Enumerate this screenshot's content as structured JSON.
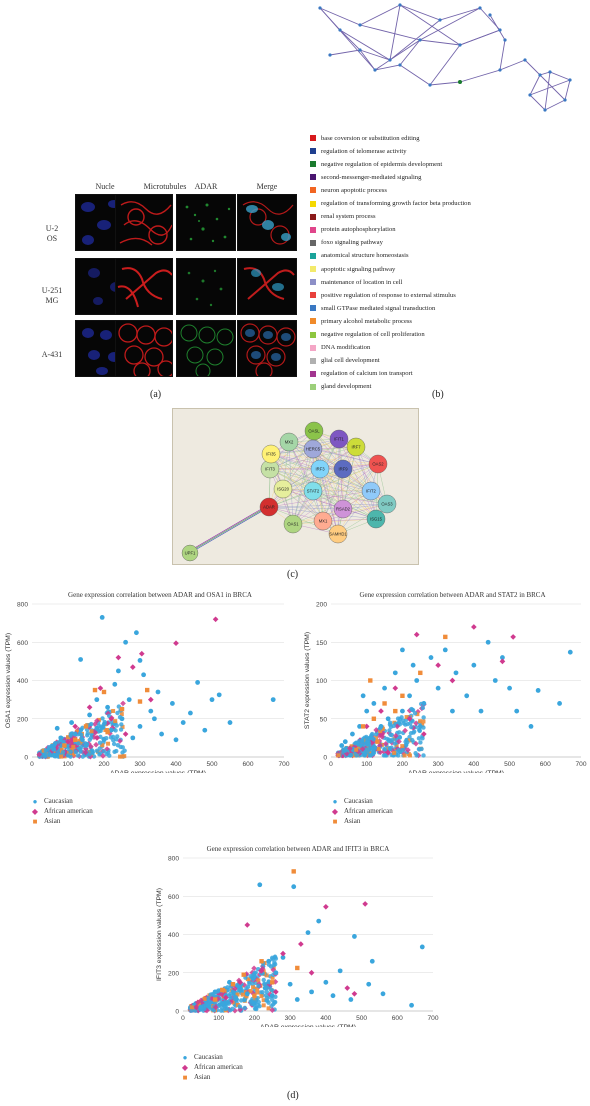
{
  "panels": {
    "a": "(a)",
    "b": "(b)",
    "c": "(c)",
    "d": "(d)"
  },
  "microscopy": {
    "channels": [
      "Nucle",
      "Microtubules",
      "ADAR",
      "Merge"
    ],
    "cell_lines": [
      {
        "line1": "U-2",
        "line2": "OS"
      },
      {
        "line1": "U-251",
        "line2": "MG"
      },
      {
        "line1": "A-431",
        "line2": ""
      }
    ]
  },
  "enrichment_legend": [
    {
      "label": "base coversion or substitution editing",
      "color": "#d7191c"
    },
    {
      "label": "regulation of telomerase activity",
      "color": "#1f3f8f"
    },
    {
      "label": "negative regulation of epidermis development",
      "color": "#1a7a2e"
    },
    {
      "label": "second-messenger-mediated signaling",
      "color": "#4a1570"
    },
    {
      "label": "neuron apoptotic process",
      "color": "#f26522"
    },
    {
      "label": "regulation of transforming growth factor beta production",
      "color": "#f5d800"
    },
    {
      "label": "renal system process",
      "color": "#8b1a1a"
    },
    {
      "label": "protein autophosphorylation",
      "color": "#e0458b"
    },
    {
      "label": "foxo signaling pathway",
      "color": "#666666"
    },
    {
      "label": "anatomical structure homeostasis",
      "color": "#1aa39a"
    },
    {
      "label": "apoptotic signaling pathway",
      "color": "#f3ea6b"
    },
    {
      "label": "maintenance of location in cell",
      "color": "#8c8fc7"
    },
    {
      "label": "positive regulation of response to external stimulus",
      "color": "#e8413c"
    },
    {
      "label": "small GTPase mediated signal transduction",
      "color": "#3a78c2"
    },
    {
      "label": "primary alcohol metabolic process",
      "color": "#f08a2a"
    },
    {
      "label": "negative regulation of cell proliferation",
      "color": "#8dc63f"
    },
    {
      "label": "DNA modification",
      "color": "#f4a6c6"
    },
    {
      "label": "glial cell development",
      "color": "#b0b0b0"
    },
    {
      "label": "regulation of calcium ion transport",
      "color": "#a2358f"
    },
    {
      "label": "gland development",
      "color": "#9ccf7a"
    }
  ],
  "ppi": {
    "nodes": [
      "OASL",
      "IFIT1",
      "IRF7",
      "OAS2",
      "MX2",
      "HERC5",
      "ISG15",
      "IFIT3",
      "IRF9",
      "IFIT2",
      "OAS3",
      "IFI35",
      "IRF3",
      "ISG20",
      "ADAR",
      "STAT2",
      "OAS1",
      "MX1",
      "RSAD2",
      "SAMHD1",
      "UPF1"
    ]
  },
  "colors": {
    "caucasian": "#3aa6dd",
    "african_american": "#d03a8f",
    "asian": "#f08c3a",
    "grid": "#d9d9d9"
  },
  "chart_data": [
    {
      "type": "scatter",
      "title": "Gene expression correlation between ADAR and OSA1 in BRCA",
      "xlabel": "ADAR expression values (TPM)",
      "ylabel": "OSA1 expression values (TPM)",
      "xlim": [
        0,
        700
      ],
      "ylim": [
        0,
        800
      ],
      "xticks": [
        0,
        100,
        200,
        300,
        400,
        500,
        600,
        700
      ],
      "yticks": [
        0,
        200,
        400,
        600,
        800
      ],
      "grid": "horizontal",
      "legend_position": "bottom-left",
      "series": [
        {
          "name": "Caucasian",
          "marker": "circle",
          "points": [
            [
              195,
              730
            ],
            [
              290,
              650
            ],
            [
              260,
              600
            ],
            [
              135,
              510
            ],
            [
              300,
              505
            ],
            [
              310,
              430
            ],
            [
              520,
              325
            ],
            [
              670,
              300
            ],
            [
              550,
              180
            ],
            [
              460,
              390
            ],
            [
              180,
              300
            ],
            [
              230,
              380
            ],
            [
              350,
              340
            ],
            [
              240,
              450
            ],
            [
              120,
              120
            ],
            [
              160,
              220
            ],
            [
              210,
              260
            ],
            [
              270,
              300
            ],
            [
              330,
              240
            ],
            [
              390,
              280
            ],
            [
              420,
              180
            ],
            [
              480,
              140
            ],
            [
              90,
              60
            ],
            [
              60,
              40
            ],
            [
              140,
              90
            ],
            [
              180,
              150
            ],
            [
              250,
              200
            ],
            [
              300,
              160
            ],
            [
              360,
              120
            ],
            [
              200,
              90
            ],
            [
              110,
              180
            ],
            [
              80,
              100
            ],
            [
              150,
              60
            ],
            [
              220,
              140
            ],
            [
              280,
              100
            ],
            [
              340,
              200
            ],
            [
              400,
              90
            ],
            [
              440,
              230
            ],
            [
              500,
              300
            ],
            [
              70,
              150
            ]
          ]
        },
        {
          "name": "African american",
          "marker": "diamond",
          "points": [
            [
              510,
              720
            ],
            [
              400,
              595
            ],
            [
              305,
              540
            ],
            [
              240,
              520
            ],
            [
              280,
              470
            ],
            [
              190,
              360
            ],
            [
              160,
              260
            ],
            [
              220,
              200
            ],
            [
              120,
              160
            ],
            [
              330,
              300
            ],
            [
              260,
              120
            ],
            [
              100,
              80
            ]
          ]
        },
        {
          "name": "Asian",
          "marker": "square",
          "points": [
            [
              175,
              350
            ],
            [
              200,
              340
            ],
            [
              300,
              290
            ],
            [
              250,
              250
            ],
            [
              150,
              160
            ],
            [
              120,
              90
            ],
            [
              90,
              60
            ],
            [
              210,
              130
            ],
            [
              320,
              350
            ]
          ]
        }
      ]
    },
    {
      "type": "scatter",
      "title": "Gene expression correlation between ADAR and STAT2 in BRCA",
      "xlabel": "ADAR expression values (TPM)",
      "ylabel": "STAT2 expression values (TPM)",
      "xlim": [
        0,
        700
      ],
      "ylim": [
        0,
        200
      ],
      "xticks": [
        0,
        100,
        200,
        300,
        400,
        500,
        600,
        700
      ],
      "yticks": [
        0,
        50,
        100,
        150,
        200
      ],
      "grid": "horizontal",
      "legend_position": "bottom-left",
      "series": [
        {
          "name": "Caucasian",
          "marker": "circle",
          "points": [
            [
              670,
              137
            ],
            [
              640,
              70
            ],
            [
              580,
              87
            ],
            [
              520,
              60
            ],
            [
              480,
              130
            ],
            [
              460,
              100
            ],
            [
              440,
              150
            ],
            [
              400,
              120
            ],
            [
              380,
              80
            ],
            [
              350,
              110
            ],
            [
              320,
              140
            ],
            [
              300,
              90
            ],
            [
              280,
              130
            ],
            [
              260,
              70
            ],
            [
              240,
              100
            ],
            [
              220,
              80
            ],
            [
              200,
              60
            ],
            [
              180,
              110
            ],
            [
              160,
              50
            ],
            [
              140,
              40
            ],
            [
              120,
              70
            ],
            [
              100,
              60
            ],
            [
              80,
              40
            ],
            [
              60,
              30
            ],
            [
              40,
              20
            ],
            [
              30,
              15
            ],
            [
              250,
              40
            ],
            [
              340,
              60
            ],
            [
              420,
              60
            ],
            [
              500,
              90
            ],
            [
              560,
              40
            ],
            [
              150,
              90
            ],
            [
              110,
              25
            ],
            [
              90,
              80
            ],
            [
              200,
              140
            ],
            [
              230,
              120
            ]
          ]
        },
        {
          "name": "African american",
          "marker": "diamond",
          "points": [
            [
              400,
              170
            ],
            [
              510,
              157
            ],
            [
              240,
              160
            ],
            [
              480,
              125
            ],
            [
              300,
              120
            ],
            [
              180,
              90
            ],
            [
              140,
              60
            ],
            [
              220,
              50
            ],
            [
              100,
              40
            ],
            [
              340,
              100
            ],
            [
              260,
              30
            ]
          ]
        },
        {
          "name": "Asian",
          "marker": "square",
          "points": [
            [
              320,
              157
            ],
            [
              110,
              100
            ],
            [
              250,
              110
            ],
            [
              200,
              80
            ],
            [
              150,
              70
            ],
            [
              120,
              50
            ],
            [
              90,
              40
            ],
            [
              180,
              60
            ],
            [
              130,
              20
            ]
          ]
        }
      ]
    },
    {
      "type": "scatter",
      "title": "Gene expression correlation between ADAR and IFIT3 in BRCA",
      "xlabel": "ADAR expression values (TPM)",
      "ylabel": "IFIT3 expression values (TPM)",
      "xlim": [
        0,
        700
      ],
      "ylim": [
        0,
        800
      ],
      "xticks": [
        0,
        100,
        200,
        300,
        400,
        500,
        600,
        700
      ],
      "yticks": [
        0,
        200,
        400,
        600,
        800
      ],
      "grid": "horizontal",
      "legend_position": "bottom-left",
      "series": [
        {
          "name": "Caucasian",
          "marker": "circle",
          "points": [
            [
              215,
              660
            ],
            [
              310,
              650
            ],
            [
              380,
              470
            ],
            [
              350,
              410
            ],
            [
              480,
              390
            ],
            [
              670,
              335
            ],
            [
              530,
              260
            ],
            [
              440,
              210
            ],
            [
              400,
              150
            ],
            [
              300,
              140
            ],
            [
              260,
              200
            ],
            [
              230,
              120
            ],
            [
              200,
              180
            ],
            [
              180,
              90
            ],
            [
              150,
              60
            ],
            [
              130,
              150
            ],
            [
              110,
              40
            ],
            [
              90,
              100
            ],
            [
              70,
              30
            ],
            [
              50,
              20
            ],
            [
              250,
              80
            ],
            [
              320,
              60
            ],
            [
              360,
              100
            ],
            [
              420,
              80
            ],
            [
              470,
              60
            ],
            [
              520,
              140
            ],
            [
              560,
              90
            ],
            [
              640,
              30
            ],
            [
              200,
              40
            ],
            [
              160,
              120
            ],
            [
              120,
              80
            ],
            [
              280,
              280
            ],
            [
              240,
              260
            ]
          ]
        },
        {
          "name": "African american",
          "marker": "diamond",
          "points": [
            [
              510,
              560
            ],
            [
              400,
              545
            ],
            [
              180,
              450
            ],
            [
              330,
              350
            ],
            [
              280,
              300
            ],
            [
              220,
              210
            ],
            [
              160,
              150
            ],
            [
              360,
              200
            ],
            [
              460,
              120
            ],
            [
              480,
              90
            ],
            [
              120,
              70
            ],
            [
              260,
              100
            ]
          ]
        },
        {
          "name": "Asian",
          "marker": "square",
          "points": [
            [
              310,
              730
            ],
            [
              320,
              225
            ],
            [
              220,
              260
            ],
            [
              170,
              190
            ],
            [
              140,
              140
            ],
            [
              110,
              110
            ],
            [
              90,
              60
            ],
            [
              200,
              80
            ],
            [
              250,
              150
            ]
          ]
        }
      ]
    }
  ]
}
